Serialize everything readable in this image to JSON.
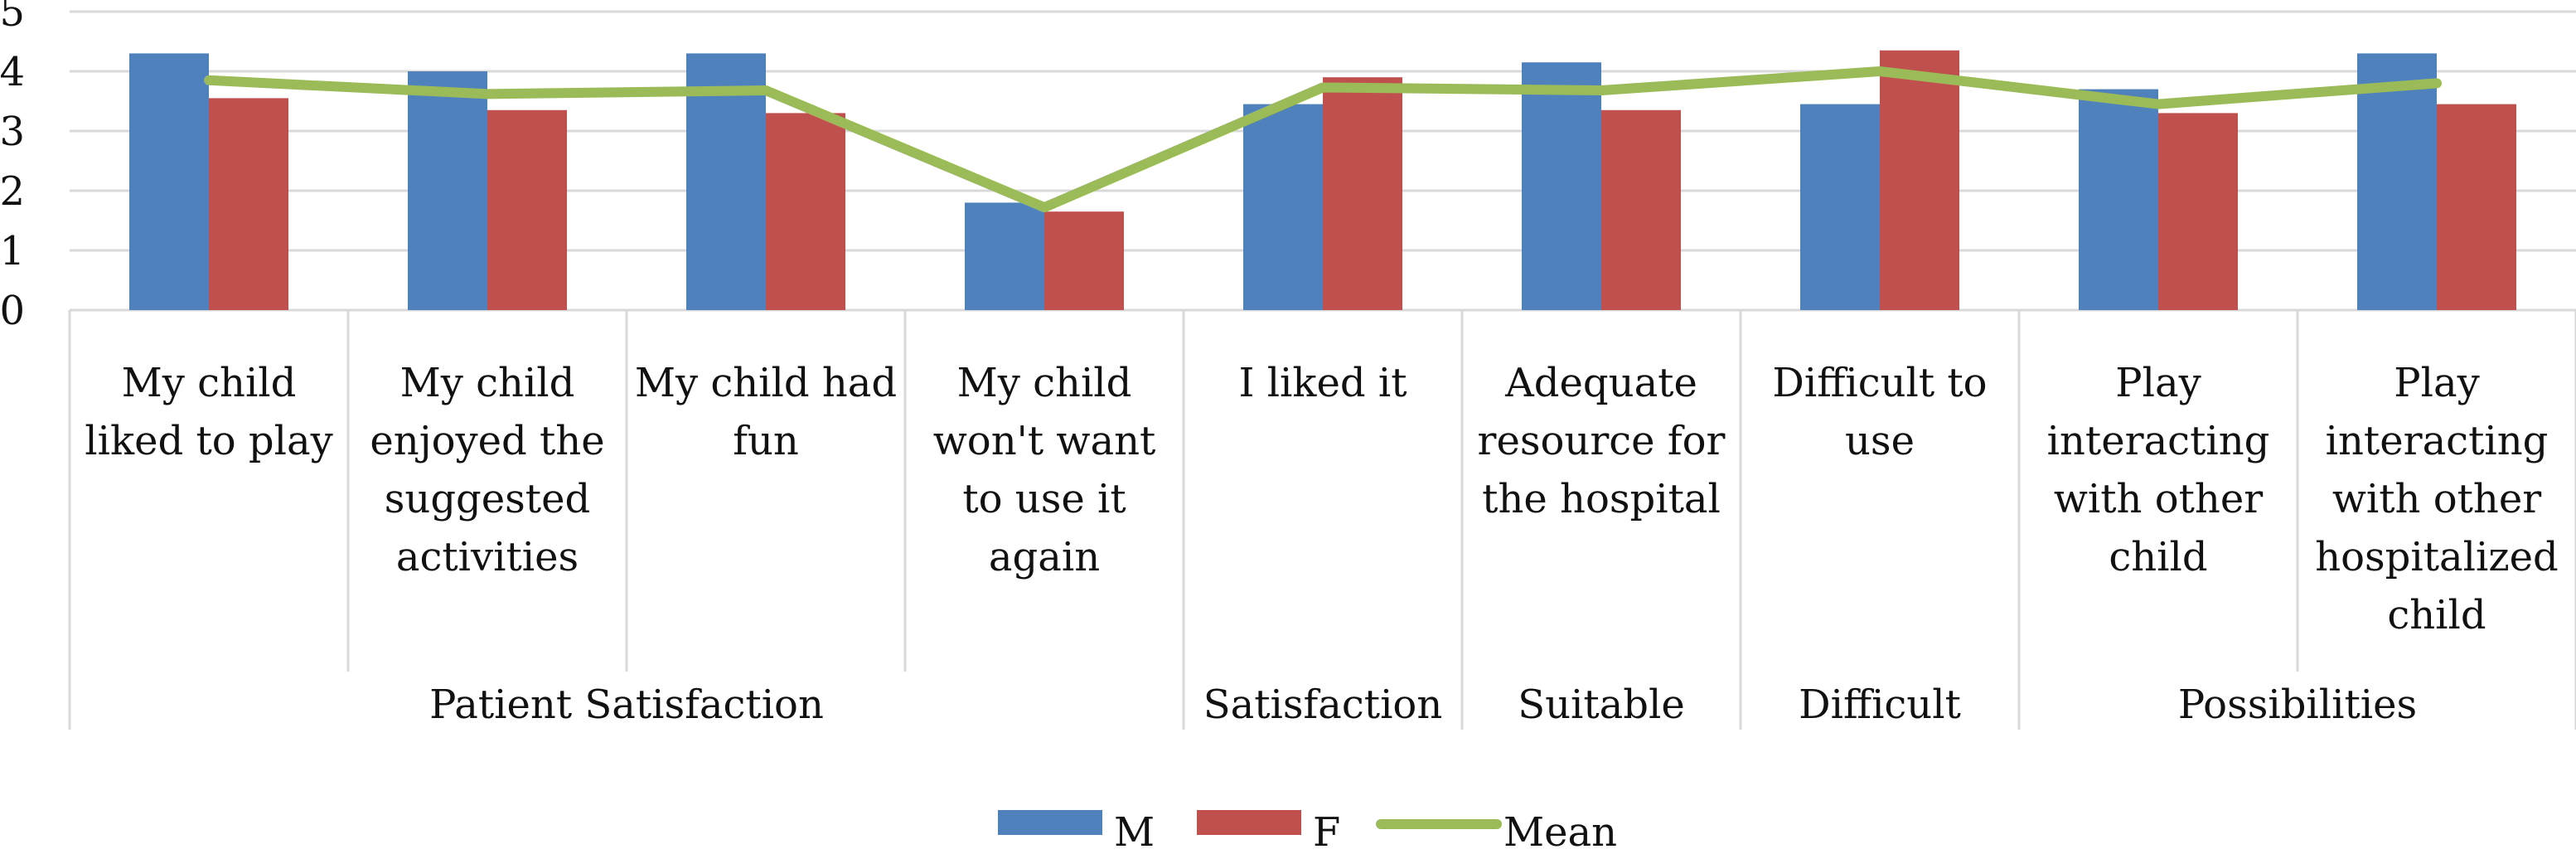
{
  "chart_data": {
    "type": "bar",
    "title": "",
    "xlabel": "",
    "ylabel": "",
    "ylim": [
      0,
      5
    ],
    "yticks": [
      "0",
      "1",
      "2",
      "3",
      "4",
      "5"
    ],
    "grid": true,
    "legend_position": "bottom-center",
    "categories": [
      {
        "label": [
          "My child",
          "liked to play"
        ],
        "group": "Patient Satisfaction"
      },
      {
        "label": [
          "My child",
          "enjoyed the",
          "suggested",
          "activities"
        ],
        "group": "Patient Satisfaction"
      },
      {
        "label": [
          "My child had",
          "fun"
        ],
        "group": "Patient Satisfaction"
      },
      {
        "label": [
          "My child",
          "won't want",
          "to use it",
          "again"
        ],
        "group": "Patient Satisfaction"
      },
      {
        "label": [
          "I liked it"
        ],
        "group": "Satisfaction"
      },
      {
        "label": [
          "Adequate",
          "resource for",
          "the hospital"
        ],
        "group": "Suitable"
      },
      {
        "label": [
          "Difficult to",
          "use"
        ],
        "group": "Difficult"
      },
      {
        "label": [
          "Play",
          "interacting",
          "with other",
          "child"
        ],
        "group": "Possibilities"
      },
      {
        "label": [
          "Play",
          "interacting",
          "with other",
          "hospitalized",
          "child"
        ],
        "group": "Possibilities"
      }
    ],
    "groups": [
      {
        "name": "Patient Satisfaction",
        "span": 4
      },
      {
        "name": "Satisfaction",
        "span": 1
      },
      {
        "name": "Suitable",
        "span": 1
      },
      {
        "name": "Difficult",
        "span": 1
      },
      {
        "name": "Possibilities",
        "span": 2
      }
    ],
    "series": [
      {
        "name": "M",
        "type": "bar",
        "color": "#4F81BD",
        "values": [
          4.3,
          4.0,
          4.3,
          1.8,
          3.45,
          4.15,
          3.45,
          3.7,
          4.3
        ]
      },
      {
        "name": "F",
        "type": "bar",
        "color": "#C0504D",
        "values": [
          3.55,
          3.35,
          3.3,
          1.65,
          3.9,
          3.35,
          4.35,
          3.3,
          3.45
        ]
      },
      {
        "name": "Mean",
        "type": "line",
        "color": "#9BBB59",
        "values": [
          3.85,
          3.62,
          3.68,
          1.72,
          3.73,
          3.68,
          4.0,
          3.45,
          3.8
        ]
      }
    ]
  }
}
